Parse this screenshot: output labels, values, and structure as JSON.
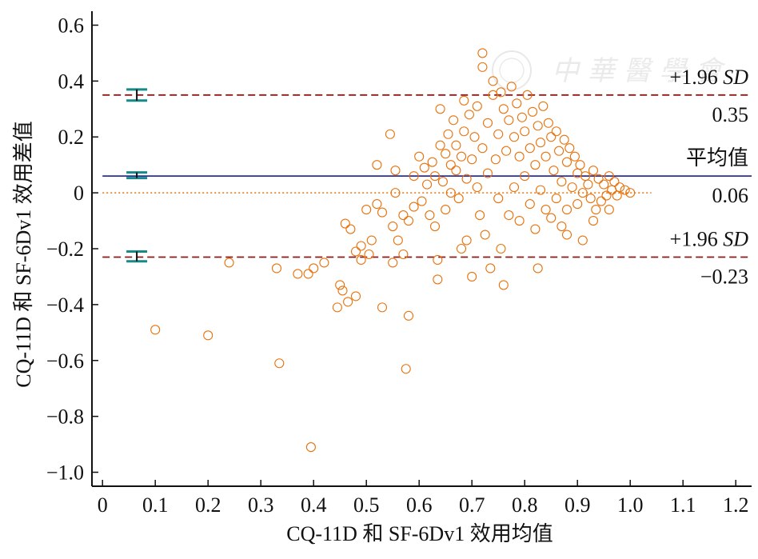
{
  "chart_data": {
    "type": "scatter",
    "xlabel": "CQ-11D 和 SF-6Dv1 效用均值",
    "ylabel": "CQ-11D 和 SF-6Dv1 效用差值",
    "xlim": [
      -0.02,
      1.23
    ],
    "ylim": [
      -1.05,
      0.65
    ],
    "x_ticks": [
      "0",
      "0.1",
      "0.2",
      "0.3",
      "0.4",
      "0.5",
      "0.6",
      "0.7",
      "0.8",
      "0.9",
      "1.0",
      "1.1",
      "1.2"
    ],
    "y_ticks": [
      "0.6",
      "0.4",
      "0.2",
      "0",
      "−0.2",
      "−0.4",
      "−0.6",
      "−0.8",
      "−1.0"
    ],
    "x_tick_values": [
      0,
      0.1,
      0.2,
      0.3,
      0.4,
      0.5,
      0.6,
      0.7,
      0.8,
      0.9,
      1.0,
      1.1,
      1.2
    ],
    "y_tick_values": [
      0.6,
      0.4,
      0.2,
      0,
      -0.2,
      -0.4,
      -0.6,
      -0.8,
      -1.0
    ],
    "reference_lines": [
      {
        "name": "upper_loa",
        "y": 0.35,
        "style": "dashed",
        "color": "#8b1a1a",
        "label_top": "+1.96 SD",
        "label_bottom": "0.35"
      },
      {
        "name": "mean",
        "y": 0.06,
        "style": "solid",
        "color": "#2b2f9e",
        "label_top": "平均值",
        "label_bottom": "0.06"
      },
      {
        "name": "lower_loa",
        "y": -0.23,
        "style": "dashed",
        "color": "#8b1a1a",
        "label_top": "+1.96 SD",
        "label_bottom": "−0.23"
      }
    ],
    "zero_line": {
      "y": 0,
      "style": "dotted",
      "color": "#e8720c",
      "x_range": [
        0,
        1.04
      ]
    },
    "confidence_intervals": [
      {
        "x": 0.065,
        "y": 0.35,
        "low": 0.33,
        "high": 0.37
      },
      {
        "x": 0.065,
        "y": 0.063,
        "low": 0.053,
        "high": 0.073
      },
      {
        "x": 0.065,
        "y": -0.228,
        "low": -0.245,
        "high": -0.21
      }
    ],
    "points": [
      [
        0.1,
        -0.49
      ],
      [
        0.2,
        -0.51
      ],
      [
        0.24,
        -0.25
      ],
      [
        0.33,
        -0.27
      ],
      [
        0.335,
        -0.61
      ],
      [
        0.37,
        -0.29
      ],
      [
        0.395,
        -0.91
      ],
      [
        0.39,
        -0.29
      ],
      [
        0.4,
        -0.27
      ],
      [
        0.42,
        -0.25
      ],
      [
        0.445,
        -0.41
      ],
      [
        0.45,
        -0.33
      ],
      [
        0.455,
        -0.35
      ],
      [
        0.46,
        -0.11
      ],
      [
        0.465,
        -0.39
      ],
      [
        0.47,
        -0.13
      ],
      [
        0.48,
        -0.21
      ],
      [
        0.48,
        -0.37
      ],
      [
        0.49,
        -0.19
      ],
      [
        0.49,
        -0.24
      ],
      [
        0.5,
        -0.06
      ],
      [
        0.505,
        -0.22
      ],
      [
        0.51,
        -0.17
      ],
      [
        0.52,
        0.1
      ],
      [
        0.52,
        -0.04
      ],
      [
        0.53,
        -0.41
      ],
      [
        0.53,
        -0.07
      ],
      [
        0.545,
        0.21
      ],
      [
        0.55,
        -0.12
      ],
      [
        0.55,
        -0.25
      ],
      [
        0.555,
        0.0
      ],
      [
        0.555,
        0.08
      ],
      [
        0.56,
        -0.17
      ],
      [
        0.57,
        -0.08
      ],
      [
        0.57,
        -0.22
      ],
      [
        0.575,
        -0.63
      ],
      [
        0.58,
        -0.44
      ],
      [
        0.58,
        -0.1
      ],
      [
        0.59,
        0.06
      ],
      [
        0.59,
        -0.05
      ],
      [
        0.6,
        0.13
      ],
      [
        0.605,
        -0.03
      ],
      [
        0.61,
        0.09
      ],
      [
        0.615,
        0.03
      ],
      [
        0.62,
        -0.08
      ],
      [
        0.625,
        0.11
      ],
      [
        0.63,
        0.06
      ],
      [
        0.63,
        -0.12
      ],
      [
        0.635,
        -0.24
      ],
      [
        0.635,
        -0.31
      ],
      [
        0.64,
        0.17
      ],
      [
        0.64,
        0.3
      ],
      [
        0.645,
        0.04
      ],
      [
        0.65,
        0.14
      ],
      [
        0.65,
        -0.06
      ],
      [
        0.655,
        0.21
      ],
      [
        0.66,
        0.1
      ],
      [
        0.66,
        0.0
      ],
      [
        0.665,
        0.26
      ],
      [
        0.67,
        0.17
      ],
      [
        0.67,
        0.08
      ],
      [
        0.675,
        -0.02
      ],
      [
        0.68,
        0.13
      ],
      [
        0.68,
        -0.2
      ],
      [
        0.685,
        0.33
      ],
      [
        0.685,
        0.22
      ],
      [
        0.69,
        0.05
      ],
      [
        0.69,
        -0.17
      ],
      [
        0.695,
        0.28
      ],
      [
        0.7,
        0.12
      ],
      [
        0.7,
        -0.3
      ],
      [
        0.705,
        0.2
      ],
      [
        0.71,
        0.31
      ],
      [
        0.71,
        0.02
      ],
      [
        0.715,
        -0.08
      ],
      [
        0.72,
        0.5
      ],
      [
        0.72,
        0.45
      ],
      [
        0.72,
        0.16
      ],
      [
        0.725,
        -0.15
      ],
      [
        0.73,
        0.25
      ],
      [
        0.73,
        0.07
      ],
      [
        0.735,
        -0.27
      ],
      [
        0.74,
        0.35
      ],
      [
        0.74,
        0.4
      ],
      [
        0.745,
        0.12
      ],
      [
        0.75,
        0.21
      ],
      [
        0.75,
        -0.02
      ],
      [
        0.755,
        0.36
      ],
      [
        0.755,
        -0.2
      ],
      [
        0.76,
        0.3
      ],
      [
        0.76,
        -0.33
      ],
      [
        0.765,
        0.15
      ],
      [
        0.77,
        0.26
      ],
      [
        0.77,
        -0.08
      ],
      [
        0.775,
        0.38
      ],
      [
        0.78,
        0.2
      ],
      [
        0.78,
        0.02
      ],
      [
        0.785,
        0.32
      ],
      [
        0.79,
        0.13
      ],
      [
        0.79,
        -0.1
      ],
      [
        0.795,
        0.27
      ],
      [
        0.8,
        0.22
      ],
      [
        0.8,
        0.06
      ],
      [
        0.805,
        0.35
      ],
      [
        0.81,
        0.16
      ],
      [
        0.81,
        -0.04
      ],
      [
        0.815,
        0.29
      ],
      [
        0.82,
        0.1
      ],
      [
        0.82,
        -0.13
      ],
      [
        0.825,
        0.24
      ],
      [
        0.825,
        -0.27
      ],
      [
        0.83,
        0.18
      ],
      [
        0.83,
        0.01
      ],
      [
        0.835,
        0.31
      ],
      [
        0.84,
        0.13
      ],
      [
        0.84,
        -0.06
      ],
      [
        0.845,
        0.25
      ],
      [
        0.85,
        0.2
      ],
      [
        0.85,
        -0.09
      ],
      [
        0.855,
        0.08
      ],
      [
        0.86,
        0.22
      ],
      [
        0.86,
        -0.02
      ],
      [
        0.865,
        0.15
      ],
      [
        0.87,
        0.04
      ],
      [
        0.87,
        -0.12
      ],
      [
        0.875,
        0.19
      ],
      [
        0.88,
        0.11
      ],
      [
        0.88,
        -0.06
      ],
      [
        0.885,
        0.16
      ],
      [
        0.89,
        0.02
      ],
      [
        0.895,
        0.13
      ],
      [
        0.9,
        0.07
      ],
      [
        0.9,
        -0.04
      ],
      [
        0.905,
        0.1
      ],
      [
        0.91,
        0.0
      ],
      [
        0.91,
        -0.17
      ],
      [
        0.915,
        0.06
      ],
      [
        0.92,
        0.03
      ],
      [
        0.925,
        -0.02
      ],
      [
        0.93,
        0.08
      ],
      [
        0.935,
        -0.06
      ],
      [
        0.94,
        0.05
      ],
      [
        0.945,
        -0.03
      ],
      [
        0.95,
        0.03
      ],
      [
        0.955,
        -0.01
      ],
      [
        0.96,
        0.06
      ],
      [
        0.965,
        0.01
      ],
      [
        0.97,
        0.04
      ],
      [
        0.975,
        -0.01
      ],
      [
        0.98,
        0.02
      ],
      [
        0.99,
        0.01
      ],
      [
        1.0,
        0.0
      ],
      [
        0.96,
        -0.06
      ],
      [
        0.93,
        -0.1
      ],
      [
        0.88,
        -0.15
      ]
    ],
    "point_style": {
      "marker": "open-circle",
      "color": "#e8720c"
    },
    "legend": "none",
    "grid": false
  }
}
